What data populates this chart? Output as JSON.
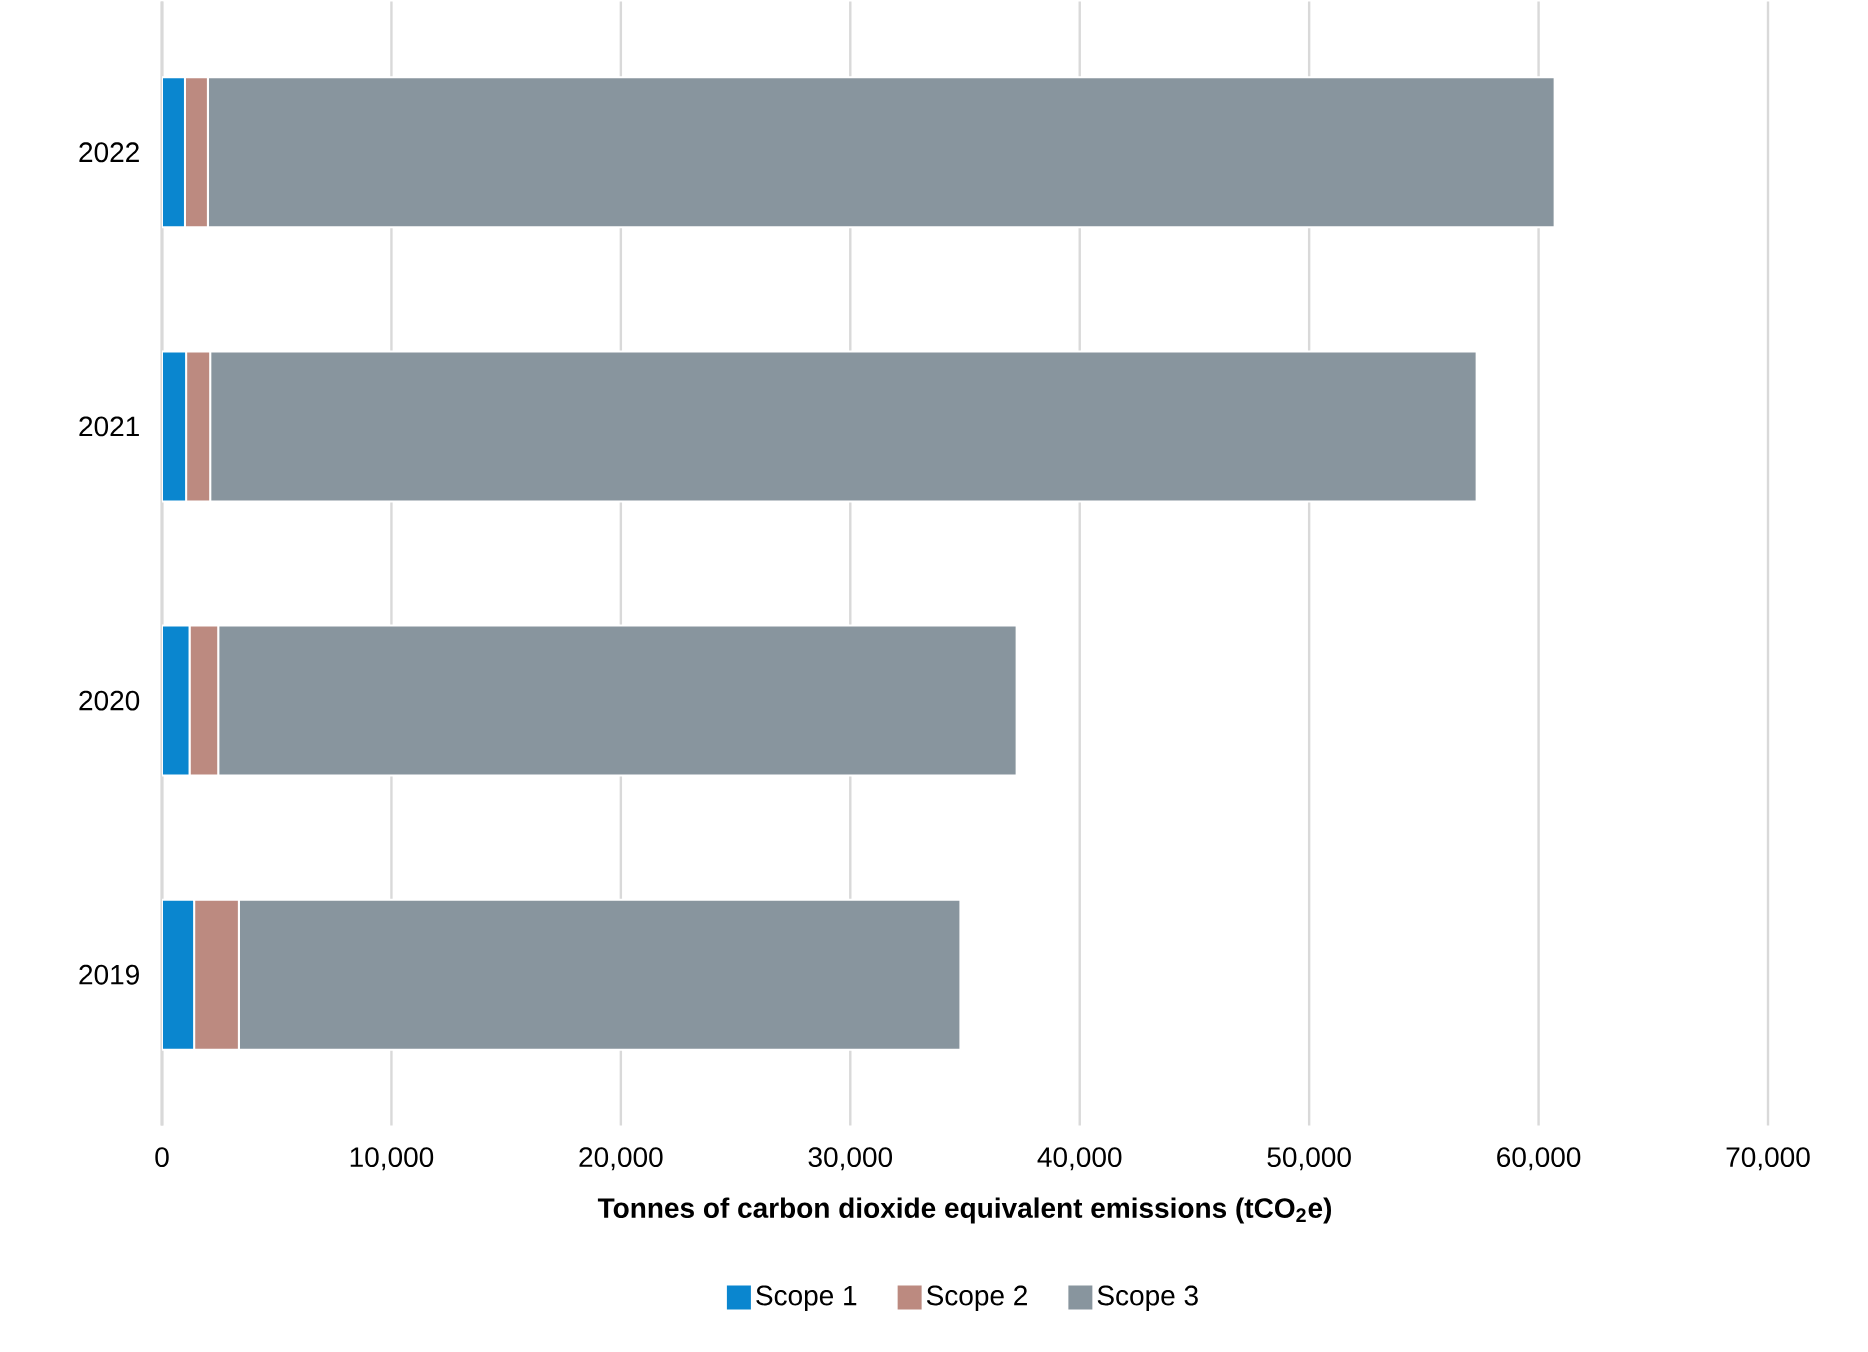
{
  "chart_data": {
    "type": "bar",
    "orientation": "horizontal",
    "stacked": true,
    "categories": [
      "2022",
      "2021",
      "2020",
      "2019"
    ],
    "series": [
      {
        "name": "Scope 1",
        "color": "#0a86cf",
        "values": [
          1000,
          1050,
          1200,
          1400
        ]
      },
      {
        "name": "Scope 2",
        "color": "#bc8a80",
        "values": [
          1000,
          1050,
          1250,
          1950
        ]
      },
      {
        "name": "Scope 3",
        "color": "#88959e",
        "values": [
          58700,
          55200,
          34800,
          31450
        ]
      }
    ],
    "xlabel": "Tonnes of carbon dioxide equivalent emissions (tCO$_{2}$e)",
    "xlim": [
      0,
      70000
    ],
    "xticks": [
      0,
      {
        "value": 10000,
        "label": "10,000"
      },
      {
        "value": 20000,
        "label": "20,000"
      },
      {
        "value": 30000,
        "label": "30,000"
      },
      {
        "value": 40000,
        "label": "40,000"
      },
      {
        "value": 50000,
        "label": "50,000"
      },
      {
        "value": 60000,
        "label": "60,000"
      },
      {
        "value": 70000,
        "label": "70,000"
      }
    ],
    "grid": "x",
    "legend": "bottom"
  }
}
